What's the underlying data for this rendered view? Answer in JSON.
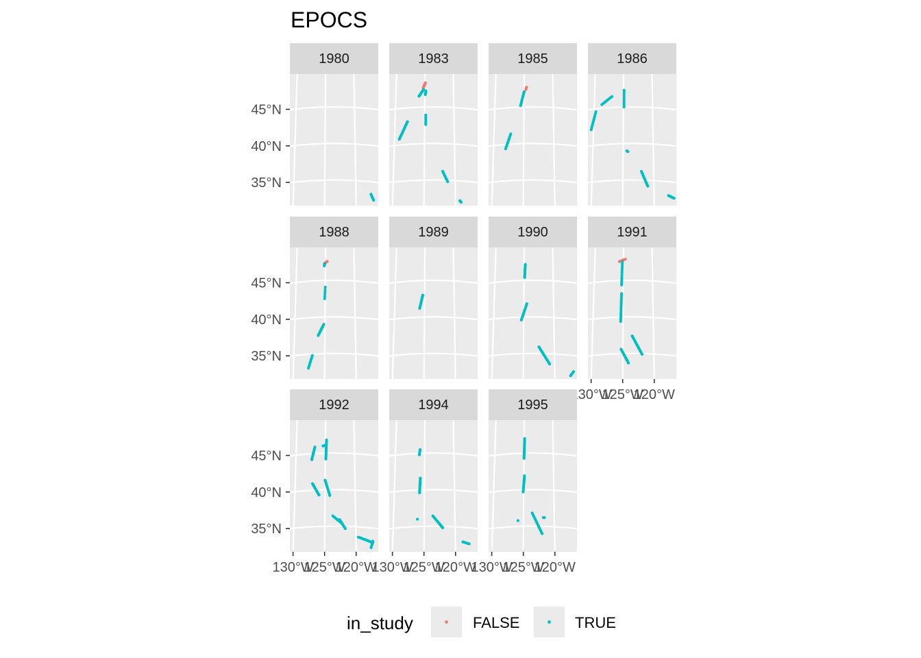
{
  "chart_data": {
    "type": "scatter",
    "title": "EPOCS",
    "colors": {
      "FALSE": "#F8766D",
      "TRUE": "#00BFC4",
      "panel": "#EBEBEB",
      "strip": "#D9D9D9",
      "grid": "#FFFFFF"
    },
    "ylabel": "",
    "xlabel": "",
    "lat_ticks": [
      45,
      40,
      35
    ],
    "lat_tick_labels": [
      "45°N",
      "40°N",
      "35°N"
    ],
    "lon_ticks": [
      -130,
      -125,
      -120
    ],
    "lon_tick_labels": [
      "130°W",
      "125°W",
      "120°W"
    ],
    "xlim": [
      -130.5,
      -116.5
    ],
    "ylim": [
      31.5,
      49.5
    ],
    "grid": true,
    "legend": {
      "title": "in_study",
      "position": "bottom",
      "entries": [
        {
          "label": "FALSE",
          "color": "#F8766D"
        },
        {
          "label": "TRUE",
          "color": "#00BFC4"
        }
      ]
    },
    "facets": [
      {
        "label": "1980",
        "tracks": [
          {
            "s": "TRUE",
            "p": [
              [
                -117.6,
                33.3
              ],
              [
                -117.2,
                32.5
              ]
            ],
            "n": 8
          }
        ]
      },
      {
        "label": "1983",
        "tracks": [
          {
            "s": "FALSE",
            "p": [
              [
                -125.3,
                47.6
              ],
              [
                -124.9,
                48.3
              ]
            ],
            "n": 10
          },
          {
            "s": "TRUE",
            "p": [
              [
                -126.0,
                46.5
              ],
              [
                -125.2,
                47.4
              ]
            ],
            "n": 14
          },
          {
            "s": "TRUE",
            "p": [
              [
                -124.9,
                46.7
              ],
              [
                -124.8,
                47.2
              ]
            ],
            "n": 4
          },
          {
            "s": "TRUE",
            "p": [
              [
                -129.2,
                40.8
              ],
              [
                -127.9,
                43.1
              ]
            ],
            "n": 16
          },
          {
            "s": "TRUE",
            "p": [
              [
                -124.8,
                42.6
              ],
              [
                -124.8,
                43.9
              ]
            ],
            "n": 8
          },
          {
            "s": "TRUE",
            "p": [
              [
                -122.0,
                36.2
              ],
              [
                -121.2,
                34.8
              ]
            ],
            "n": 10
          },
          {
            "s": "TRUE",
            "p": [
              [
                -119.3,
                32.3
              ],
              [
                -119.1,
                32.1
              ]
            ],
            "n": 3
          }
        ]
      },
      {
        "label": "1985",
        "tracks": [
          {
            "s": "FALSE",
            "p": [
              [
                -124.7,
                47.4
              ],
              [
                -124.6,
                47.7
              ]
            ],
            "n": 3
          },
          {
            "s": "TRUE",
            "p": [
              [
                -125.6,
                45.2
              ],
              [
                -125.0,
                47.1
              ]
            ],
            "n": 12
          },
          {
            "s": "TRUE",
            "p": [
              [
                -128.0,
                39.4
              ],
              [
                -127.2,
                41.4
              ]
            ],
            "n": 12
          }
        ]
      },
      {
        "label": "1986",
        "tracks": [
          {
            "s": "TRUE",
            "p": [
              [
                -130.4,
                42.2
              ],
              [
                -129.7,
                44.6
              ]
            ],
            "n": 12
          },
          {
            "s": "TRUE",
            "p": [
              [
                -128.7,
                45.5
              ],
              [
                -127.0,
                46.5
              ]
            ],
            "n": 10
          },
          {
            "s": "TRUE",
            "p": [
              [
                -124.9,
                45.0
              ],
              [
                -124.9,
                47.3
              ]
            ],
            "n": 10
          },
          {
            "s": "TRUE",
            "p": [
              [
                -124.4,
                39.0
              ],
              [
                -124.2,
                38.9
              ]
            ],
            "n": 3
          },
          {
            "s": "TRUE",
            "p": [
              [
                -122.0,
                36.2
              ],
              [
                -121.0,
                34.2
              ]
            ],
            "n": 14
          },
          {
            "s": "TRUE",
            "p": [
              [
                -117.7,
                33.1
              ],
              [
                -116.8,
                32.8
              ]
            ],
            "n": 8
          }
        ]
      },
      {
        "label": "1988",
        "tracks": [
          {
            "s": "FALSE",
            "p": [
              [
                -125.2,
                47.3
              ],
              [
                -124.7,
                47.6
              ]
            ],
            "n": 5
          },
          {
            "s": "TRUE",
            "p": [
              [
                -125.2,
                47.0
              ],
              [
                -125.1,
                47.3
              ]
            ],
            "n": 3
          },
          {
            "s": "TRUE",
            "p": [
              [
                -125.1,
                42.5
              ],
              [
                -125.0,
                44.1
              ]
            ],
            "n": 6
          },
          {
            "s": "TRUE",
            "p": [
              [
                -126.1,
                37.5
              ],
              [
                -125.2,
                39.0
              ]
            ],
            "n": 12
          },
          {
            "s": "TRUE",
            "p": [
              [
                -127.6,
                33.1
              ],
              [
                -127.0,
                34.8
              ]
            ],
            "n": 10
          }
        ]
      },
      {
        "label": "1989",
        "tracks": [
          {
            "s": "TRUE",
            "p": [
              [
                -125.8,
                41.2
              ],
              [
                -125.3,
                43.0
              ]
            ],
            "n": 14
          }
        ]
      },
      {
        "label": "1990",
        "tracks": [
          {
            "s": "TRUE",
            "p": [
              [
                -124.9,
                45.4
              ],
              [
                -124.8,
                47.2
              ]
            ],
            "n": 12
          },
          {
            "s": "TRUE",
            "p": [
              [
                -125.4,
                39.6
              ],
              [
                -124.5,
                41.8
              ]
            ],
            "n": 14
          },
          {
            "s": "TRUE",
            "p": [
              [
                -122.5,
                35.9
              ],
              [
                -120.8,
                33.6
              ]
            ],
            "n": 16
          },
          {
            "s": "TRUE",
            "p": [
              [
                -117.5,
                32.2
              ],
              [
                -117.0,
                32.8
              ]
            ],
            "n": 5
          }
        ]
      },
      {
        "label": "1991",
        "tracks": [
          {
            "s": "FALSE",
            "p": [
              [
                -125.7,
                47.6
              ],
              [
                -124.7,
                47.9
              ]
            ],
            "n": 8
          },
          {
            "s": "TRUE",
            "p": [
              [
                -125.3,
                44.4
              ],
              [
                -125.2,
                47.6
              ]
            ],
            "n": 14
          },
          {
            "s": "TRUE",
            "p": [
              [
                -125.4,
                39.4
              ],
              [
                -125.3,
                43.2
              ]
            ],
            "n": 18
          },
          {
            "s": "TRUE",
            "p": [
              [
                -123.5,
                37.4
              ],
              [
                -121.9,
                34.9
              ]
            ],
            "n": 16
          },
          {
            "s": "TRUE",
            "p": [
              [
                -125.3,
                35.6
              ],
              [
                -124.1,
                33.7
              ]
            ],
            "n": 12
          }
        ]
      },
      {
        "label": "1992",
        "tracks": [
          {
            "s": "TRUE",
            "p": [
              [
                -127.3,
                44.2
              ],
              [
                -126.8,
                45.9
              ]
            ],
            "n": 14
          },
          {
            "s": "TRUE",
            "p": [
              [
                -125.4,
                46.0
              ],
              [
                -125.0,
                46.1
              ]
            ],
            "n": 3
          },
          {
            "s": "TRUE",
            "p": [
              [
                -124.9,
                44.2
              ],
              [
                -124.8,
                46.8
              ]
            ],
            "n": 14
          },
          {
            "s": "TRUE",
            "p": [
              [
                -127.1,
                40.9
              ],
              [
                -126.0,
                39.3
              ]
            ],
            "n": 12
          },
          {
            "s": "TRUE",
            "p": [
              [
                -125.0,
                41.3
              ],
              [
                -124.2,
                39.2
              ]
            ],
            "n": 14
          },
          {
            "s": "TRUE",
            "p": [
              [
                -123.7,
                36.4
              ],
              [
                -122.4,
                35.5
              ]
            ],
            "n": 10
          },
          {
            "s": "TRUE",
            "p": [
              [
                -122.6,
                35.9
              ],
              [
                -121.7,
                34.7
              ]
            ],
            "n": 10
          },
          {
            "s": "TRUE",
            "p": [
              [
                -119.6,
                33.6
              ],
              [
                -117.3,
                33.0
              ]
            ],
            "n": 16
          },
          {
            "s": "TRUE",
            "p": [
              [
                -117.6,
                32.3
              ],
              [
                -117.3,
                33.2
              ]
            ],
            "n": 5
          }
        ]
      },
      {
        "label": "1994",
        "tracks": [
          {
            "s": "TRUE",
            "p": [
              [
                -125.9,
                44.8
              ],
              [
                -125.8,
                45.5
              ]
            ],
            "n": 6
          },
          {
            "s": "TRUE",
            "p": [
              [
                -125.8,
                39.6
              ],
              [
                -125.7,
                41.6
              ]
            ],
            "n": 14
          },
          {
            "s": "TRUE",
            "p": [
              [
                -126.1,
                36.0
              ],
              [
                -126.1,
                36.0
              ]
            ],
            "n": 1
          },
          {
            "s": "TRUE",
            "p": [
              [
                -123.6,
                36.4
              ],
              [
                -122.0,
                34.8
              ]
            ],
            "n": 14
          },
          {
            "s": "TRUE",
            "p": [
              [
                -118.8,
                33.0
              ],
              [
                -117.8,
                32.8
              ]
            ],
            "n": 6
          }
        ]
      },
      {
        "label": "1995",
        "tracks": [
          {
            "s": "TRUE",
            "p": [
              [
                -125.0,
                44.3
              ],
              [
                -124.9,
                47.0
              ]
            ],
            "n": 16
          },
          {
            "s": "TRUE",
            "p": [
              [
                -125.1,
                39.7
              ],
              [
                -124.9,
                41.9
              ]
            ],
            "n": 14
          },
          {
            "s": "TRUE",
            "p": [
              [
                -125.9,
                35.8
              ],
              [
                -125.9,
                35.8
              ]
            ],
            "n": 1
          },
          {
            "s": "TRUE",
            "p": [
              [
                -123.6,
                36.8
              ],
              [
                -122.0,
                34.0
              ]
            ],
            "n": 16
          },
          {
            "s": "TRUE",
            "p": [
              [
                -121.8,
                36.2
              ],
              [
                -121.6,
                36.2
              ]
            ],
            "n": 2
          }
        ]
      }
    ]
  }
}
